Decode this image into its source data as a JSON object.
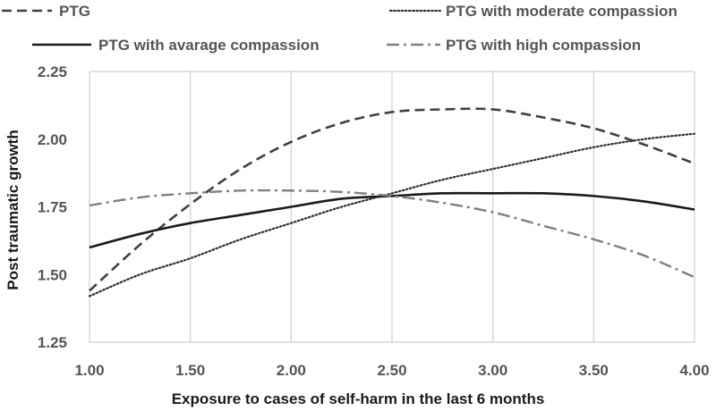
{
  "chart_data": {
    "type": "line",
    "title": "",
    "xlabel": "Exposure to cases of self-harm in the last 6 months",
    "ylabel": "Post traumatic growth",
    "xlim": [
      1.0,
      4.0
    ],
    "ylim": [
      1.25,
      2.25
    ],
    "x_ticks": [
      "1.00",
      "1.50",
      "2.00",
      "2.50",
      "3.00",
      "3.50",
      "4.00"
    ],
    "y_ticks": [
      "1.25",
      "1.50",
      "1.75",
      "2.00",
      "2.25"
    ],
    "grid": "vertical",
    "legend_position": "top",
    "x": [
      1.0,
      1.25,
      1.5,
      1.75,
      2.0,
      2.25,
      2.5,
      2.75,
      3.0,
      3.25,
      3.5,
      3.75,
      4.0
    ],
    "series": [
      {
        "name": "PTG",
        "style": "dashed",
        "color": "#404040",
        "values": [
          1.44,
          1.61,
          1.76,
          1.89,
          1.99,
          2.06,
          2.1,
          2.11,
          2.11,
          2.08,
          2.04,
          1.98,
          1.91
        ]
      },
      {
        "name": "PTG with moderate compassion",
        "style": "dotted",
        "color": "#303030",
        "values": [
          1.42,
          1.5,
          1.56,
          1.63,
          1.69,
          1.75,
          1.8,
          1.85,
          1.89,
          1.93,
          1.97,
          2.0,
          2.02
        ]
      },
      {
        "name": "PTG with avarage compassion",
        "style": "solid",
        "color": "#1a1a1a",
        "values": [
          1.6,
          1.65,
          1.69,
          1.72,
          1.75,
          1.78,
          1.79,
          1.8,
          1.8,
          1.8,
          1.79,
          1.77,
          1.74
        ]
      },
      {
        "name": "PTG with high compassion",
        "style": "dashdot",
        "color": "#7f7f7f",
        "values": [
          1.755,
          1.785,
          1.8,
          1.81,
          1.81,
          1.805,
          1.79,
          1.765,
          1.73,
          1.68,
          1.63,
          1.57,
          1.49
        ]
      }
    ]
  }
}
